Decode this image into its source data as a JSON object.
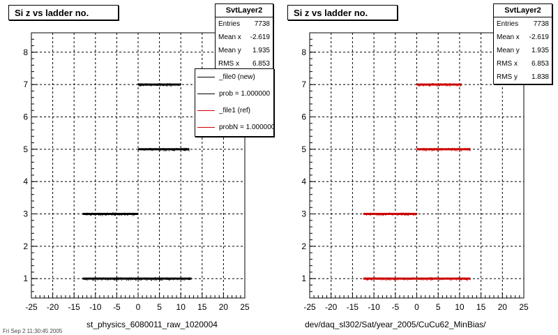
{
  "footer": {
    "date": "Fri Sep 2 11:30:45 2005"
  },
  "panels": [
    {
      "title": "Si z vs ladder no.",
      "caption": "st_physics_6080011_raw_1020004",
      "stats": {
        "name": "SvtLayer2",
        "rows": [
          {
            "label": "Entries",
            "value": "7738"
          },
          {
            "label": "Mean x",
            "value": "-2.619"
          },
          {
            "label": "Mean y",
            "value": "1.935"
          },
          {
            "label": "RMS x",
            "value": "6.853"
          }
        ]
      },
      "legend": [
        {
          "label": "_file0 (new)",
          "color": "#000000"
        },
        {
          "label": "prob = 1.000000",
          "color": "#000000"
        },
        {
          "label": "_file1 (ref)",
          "color": "#cc0000"
        },
        {
          "label": "probN = 1.000000",
          "color": "#cc0000"
        }
      ]
    },
    {
      "title": "Si z vs ladder no.",
      "caption": "dev/daq_sl302/Sat/year_2005/CuCu62_MinBias/",
      "stats": {
        "name": "SvtLayer2",
        "rows": [
          {
            "label": "Entries",
            "value": "7738"
          },
          {
            "label": "Mean x",
            "value": "-2.619"
          },
          {
            "label": "Mean y",
            "value": "1.935"
          },
          {
            "label": "RMS x",
            "value": "6.853"
          },
          {
            "label": "RMS y",
            "value": "1.838"
          }
        ]
      }
    }
  ],
  "chart_data": [
    {
      "type": "scatter",
      "title": "Si z vs ladder no.",
      "xlabel": "st_physics_6080011_raw_1020004",
      "ylabel": "",
      "xlim": [
        -25,
        25
      ],
      "ylim": [
        0.4,
        8.6
      ],
      "xticks": [
        -25,
        -20,
        -15,
        -10,
        -5,
        0,
        5,
        10,
        15,
        20,
        25
      ],
      "yticks": [
        1,
        2,
        3,
        4,
        5,
        6,
        7,
        8
      ],
      "grid": true,
      "series": [
        {
          "name": "_file0 (new)",
          "color": "#000000",
          "bands": [
            {
              "y": 1,
              "x": [
                -13,
                12.5
              ]
            },
            {
              "y": 3,
              "x": [
                -13,
                0
              ]
            },
            {
              "y": 5,
              "x": [
                0,
                12
              ]
            },
            {
              "y": 7,
              "x": [
                0,
                10
              ]
            }
          ]
        }
      ]
    },
    {
      "type": "scatter",
      "title": "Si z vs ladder no.",
      "xlabel": "dev/daq_sl302/Sat/year_2005/CuCu62_MinBias/",
      "ylabel": "",
      "xlim": [
        -25,
        25
      ],
      "ylim": [
        0.4,
        8.6
      ],
      "xticks": [
        -25,
        -20,
        -15,
        -10,
        -5,
        0,
        5,
        10,
        15,
        20,
        25
      ],
      "yticks": [
        1,
        2,
        3,
        4,
        5,
        6,
        7,
        8
      ],
      "grid": true,
      "series": [
        {
          "name": "_file1 (ref)",
          "color": "#cc0000",
          "bands": [
            {
              "y": 1,
              "x": [
                -12.5,
                12.5
              ]
            },
            {
              "y": 3,
              "x": [
                -12.5,
                0
              ]
            },
            {
              "y": 5,
              "x": [
                0,
                12.5
              ]
            },
            {
              "y": 7,
              "x": [
                0,
                10.5
              ]
            }
          ]
        }
      ]
    }
  ]
}
